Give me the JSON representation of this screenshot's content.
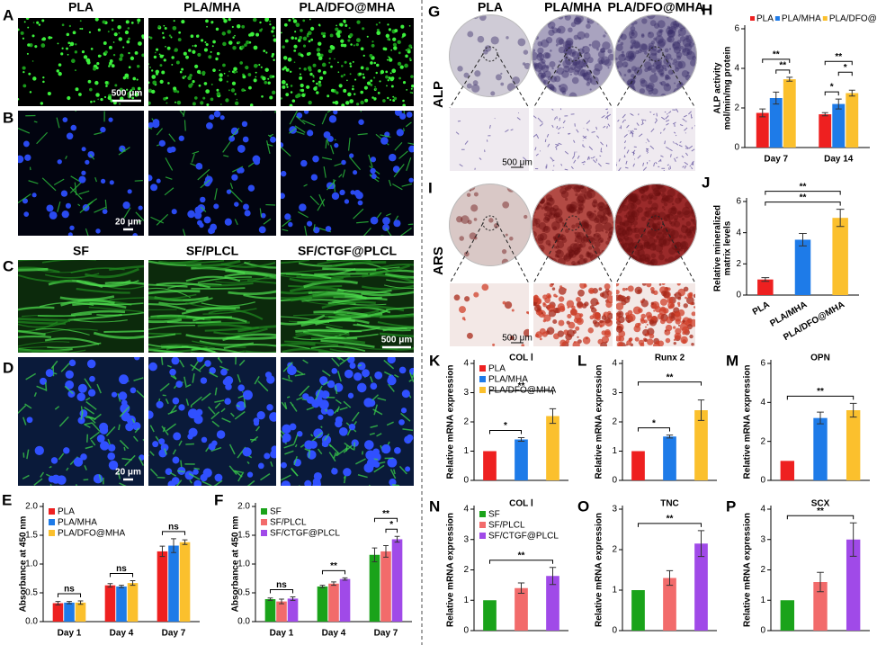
{
  "image_panel_letters": [
    "A",
    "B",
    "C",
    "D",
    "G",
    "I"
  ],
  "column_headers_1": [
    "PLA",
    "PLA/MHA",
    "PLA/DFO@MHA"
  ],
  "column_headers_2": [
    "SF",
    "SF/PLCL",
    "SF/CTGF@PLCL"
  ],
  "scale_bars": [
    "500 μm",
    "20 μm",
    "500 μm",
    "20 μm",
    "500 μm",
    "500 μm"
  ],
  "stain_labels": [
    "ALP",
    "ARS"
  ],
  "chart_data": [
    {
      "type": "bar",
      "panel": "E",
      "ylabel": "Absorbance  at 450 nm",
      "categories": [
        "Day 1",
        "Day 4",
        "Day 7"
      ],
      "series": [
        {
          "name": "PLA",
          "color": "#ee2020",
          "values": [
            0.32,
            0.63,
            1.22
          ],
          "errors": [
            0.03,
            0.03,
            0.09
          ]
        },
        {
          "name": "PLA/MHA",
          "color": "#1e7be8",
          "values": [
            0.33,
            0.61,
            1.32
          ],
          "errors": [
            0.02,
            0.02,
            0.12
          ]
        },
        {
          "name": "PLA/DFO@MHA",
          "color": "#fbc02d",
          "values": [
            0.33,
            0.67,
            1.38
          ],
          "errors": [
            0.03,
            0.04,
            0.04
          ]
        }
      ],
      "ylim": [
        0,
        2.0
      ],
      "yticks": [
        {
          "value": 0,
          "label": "0.0"
        },
        0.5,
        {
          "value": 1,
          "label": "1.0"
        },
        1.5,
        {
          "value": 2,
          "label": "2.0"
        }
      ],
      "annotations": [
        "ns",
        "ns",
        "ns"
      ]
    },
    {
      "type": "bar",
      "panel": "F",
      "ylabel": "Absorbance at 450 nm",
      "categories": [
        "Day 1",
        "Day 4",
        "Day 7"
      ],
      "series": [
        {
          "name": "SF",
          "color": "#1aa31a",
          "values": [
            0.39,
            0.61,
            1.16
          ],
          "errors": [
            0.02,
            0.02,
            0.12
          ]
        },
        {
          "name": "SF/PLCL",
          "color": "#f26b6b",
          "values": [
            0.35,
            0.66,
            1.22
          ],
          "errors": [
            0.04,
            0.03,
            0.1
          ]
        },
        {
          "name": "SF/CTGF@PLCL",
          "color": "#a04ae8",
          "values": [
            0.4,
            0.74,
            1.43
          ],
          "errors": [
            0.03,
            0.02,
            0.05
          ]
        }
      ],
      "ylim": [
        0,
        2.0
      ],
      "yticks": [
        {
          "value": 0,
          "label": "0.0"
        },
        0.5,
        {
          "value": 1,
          "label": "1.0"
        },
        1.5,
        {
          "value": 2,
          "label": "2.0"
        }
      ],
      "annotations": [
        "ns",
        "**",
        "**",
        "*"
      ]
    },
    {
      "type": "bar",
      "panel": "H",
      "ylabel": [
        "ALP activity",
        "mol/min/mg protein"
      ],
      "categories": [
        "Day 7",
        "Day 14"
      ],
      "series": [
        {
          "name": "PLA",
          "color": "#ee2020",
          "values": [
            1.75,
            1.68
          ],
          "errors": [
            0.2,
            0.08
          ]
        },
        {
          "name": "PLA/MHA",
          "color": "#1e7be8",
          "values": [
            2.5,
            2.2
          ],
          "errors": [
            0.3,
            0.25
          ]
        },
        {
          "name": "PLA/DFO@MHA",
          "color": "#fbc02d",
          "values": [
            3.45,
            2.75
          ],
          "errors": [
            0.1,
            0.15
          ]
        }
      ],
      "ylim": [
        0,
        6
      ],
      "yticks": [
        0,
        2,
        4,
        6
      ],
      "annotations": [
        "**",
        "**",
        "**",
        "*",
        "*"
      ]
    },
    {
      "type": "bar",
      "panel": "J",
      "ylabel": [
        "Relative mineralized",
        "matrix levels"
      ],
      "categories": [
        "PLA",
        "PLA/MHA",
        "PLA/DFO@MHA"
      ],
      "values": [
        1.0,
        3.55,
        4.95
      ],
      "errors": [
        0.12,
        0.4,
        0.55
      ],
      "colors": [
        "#ee2020",
        "#1e7be8",
        "#fbc02d"
      ],
      "ylim": [
        0,
        6
      ],
      "yticks": [
        0,
        2,
        4,
        6
      ],
      "annotations": [
        "**",
        "**"
      ]
    },
    {
      "type": "bar",
      "panel": "K",
      "title": "COL Ⅰ",
      "ylabel": "Relative mRNA expression",
      "legend": [
        "PLA",
        "PLA/MHA",
        "PLA/DFO@MHA"
      ],
      "values": [
        1,
        1.4,
        2.2
      ],
      "errors": [
        null,
        0.06,
        0.25
      ],
      "colors": [
        "#ee2020",
        "#1e7be8",
        "#fbc02d"
      ],
      "ylim": [
        0,
        4
      ],
      "yticks": [
        0,
        1,
        2,
        3,
        4
      ],
      "annotations": [
        "*",
        "**"
      ]
    },
    {
      "type": "bar",
      "panel": "L",
      "title": "Runx 2",
      "ylabel": "Relative mRNA expression",
      "values": [
        1,
        1.5,
        2.4
      ],
      "errors": [
        null,
        0.05,
        0.35
      ],
      "colors": [
        "#ee2020",
        "#1e7be8",
        "#fbc02d"
      ],
      "ylim": [
        0,
        4
      ],
      "yticks": [
        0,
        1,
        2,
        3,
        4
      ],
      "annotations": [
        "*",
        "**"
      ]
    },
    {
      "type": "bar",
      "panel": "M",
      "title": "OPN",
      "ylabel": "Relative mRNA expression",
      "values": [
        1,
        3.2,
        3.6
      ],
      "errors": [
        null,
        0.3,
        0.35
      ],
      "colors": [
        "#ee2020",
        "#1e7be8",
        "#fbc02d"
      ],
      "ylim": [
        0,
        6
      ],
      "yticks": [
        0,
        2,
        4,
        6
      ],
      "annotations": [
        "**"
      ]
    },
    {
      "type": "bar",
      "panel": "N",
      "title": "COL Ⅰ",
      "ylabel": "Relative mRNA expression",
      "legend": [
        "SF",
        "SF/PLCL",
        "SF/CTGF@PLCL"
      ],
      "values": [
        1,
        1.4,
        1.8
      ],
      "errors": [
        null,
        0.17,
        0.28
      ],
      "colors": [
        "#1aa31a",
        "#f26b6b",
        "#a04ae8"
      ],
      "ylim": [
        0,
        4
      ],
      "yticks": [
        0,
        1,
        2,
        3,
        4
      ],
      "annotations": [
        "**"
      ]
    },
    {
      "type": "bar",
      "panel": "O",
      "title": "TNC",
      "ylabel": "Relative mRNA expression",
      "values": [
        1,
        1.3,
        2.15
      ],
      "errors": [
        null,
        0.18,
        0.32
      ],
      "colors": [
        "#1aa31a",
        "#f26b6b",
        "#a04ae8"
      ],
      "ylim": [
        0,
        3
      ],
      "yticks": [
        0,
        1,
        2,
        3
      ],
      "annotations": [
        "**"
      ]
    },
    {
      "type": "bar",
      "panel": "P",
      "title": "SCX",
      "ylabel": "Relative mRNA expression",
      "values": [
        1,
        1.6,
        3.0
      ],
      "errors": [
        null,
        0.32,
        0.55
      ],
      "colors": [
        "#1aa31a",
        "#f26b6b",
        "#a04ae8"
      ],
      "ylim": [
        0,
        4
      ],
      "yticks": [
        0,
        1,
        2,
        3,
        4
      ],
      "annotations": [
        "**"
      ]
    }
  ]
}
